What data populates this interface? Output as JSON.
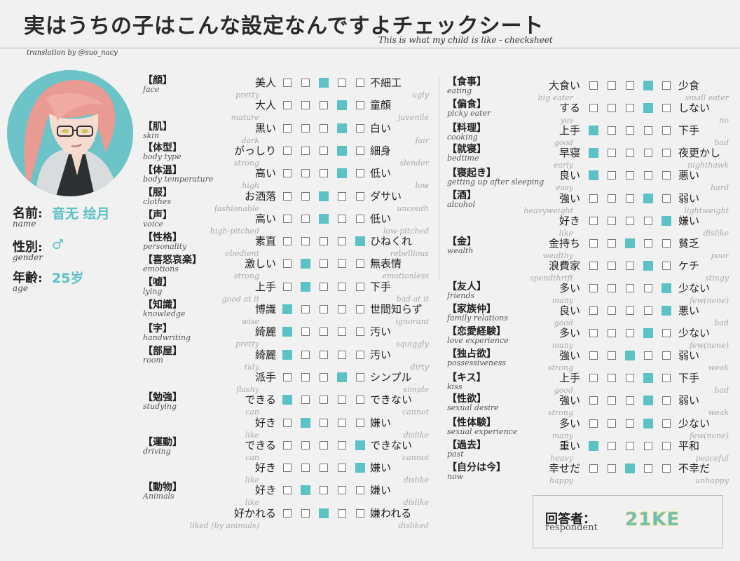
{
  "title": "実はうちの子はこんな設定なんですよチェックシート",
  "subtitle": "This is what my child is like - checksheet",
  "credit": "translation by @suo_nacy",
  "colors": {
    "accent": "#5cc2c6",
    "border": "#777777"
  },
  "profile": {
    "name_label": "名前:",
    "name_en": "name",
    "name_value": "音无 绘月",
    "gender_label": "性別:",
    "gender_en": "gender",
    "gender_value": "♂",
    "age_label": "年齢:",
    "age_en": "age",
    "age_value": "25岁"
  },
  "left_categories": [
    {
      "jp": "【顔】",
      "en": "face"
    },
    {
      "jp": "【肌】",
      "en": "skin"
    },
    {
      "jp": "【体型】",
      "en": "body type"
    },
    {
      "jp": "【体温】",
      "en": "body temperature"
    },
    {
      "jp": "【服】",
      "en": "clothes"
    },
    {
      "jp": "【声】",
      "en": "voice"
    },
    {
      "jp": "【性格】",
      "en": "personality"
    },
    {
      "jp": "【喜怒哀楽】",
      "en": "emotions"
    },
    {
      "jp": "【嘘】",
      "en": "lying"
    },
    {
      "jp": "【知識】",
      "en": "knowledge"
    },
    {
      "jp": "【字】",
      "en": "handwriting"
    },
    {
      "jp": "【部屋】",
      "en": "room"
    },
    {
      "jp": "【勉強】",
      "en": "studying"
    },
    {
      "jp": "【運動】",
      "en": "driving"
    },
    {
      "jp": "【動物】",
      "en": "Animals"
    }
  ],
  "left_rows": [
    {
      "l": "美人",
      "le": "pretty",
      "r": "不細工",
      "re": "ugly",
      "sel": 3
    },
    {
      "l": "大人",
      "le": "mature",
      "r": "童顔",
      "re": "juvenile",
      "sel": 4
    },
    {
      "l": "黒い",
      "le": "dark",
      "r": "白い",
      "re": "fair",
      "sel": 4
    },
    {
      "l": "がっしり",
      "le": "strong",
      "r": "細身",
      "re": "slender",
      "sel": 4
    },
    {
      "l": "高い",
      "le": "high",
      "r": "低い",
      "re": "low",
      "sel": 4
    },
    {
      "l": "お洒落",
      "le": "fashionable",
      "r": "ダサい",
      "re": "uncouth",
      "sel": 3
    },
    {
      "l": "高い",
      "le": "high-pitched",
      "r": "低い",
      "re": "low-pitched",
      "sel": 3
    },
    {
      "l": "素直",
      "le": "obedient",
      "r": "ひねくれ",
      "re": "rebellious",
      "sel": 5
    },
    {
      "l": "激しい",
      "le": "strong",
      "r": "無表情",
      "re": "emotionless",
      "sel": 2
    },
    {
      "l": "上手",
      "le": "good at it",
      "r": "下手",
      "re": "bad at it",
      "sel": 2
    },
    {
      "l": "博識",
      "le": "wise",
      "r": "世間知らず",
      "re": "ignorant",
      "sel": 1
    },
    {
      "l": "綺麗",
      "le": "pretty",
      "r": "汚い",
      "re": "squiggly",
      "sel": 1
    },
    {
      "l": "綺麗",
      "le": "tidy",
      "r": "汚い",
      "re": "dirty",
      "sel": 1
    },
    {
      "l": "派手",
      "le": "flashy",
      "r": "シンプル",
      "re": "simple",
      "sel": 4
    },
    {
      "l": "できる",
      "le": "can",
      "r": "できない",
      "re": "cannot",
      "sel": 1
    },
    {
      "l": "好き",
      "le": "like",
      "r": "嫌い",
      "re": "dislike",
      "sel": 2
    },
    {
      "l": "できる",
      "le": "can",
      "r": "できない",
      "re": "cannot",
      "sel": 5
    },
    {
      "l": "好き",
      "le": "like",
      "r": "嫌い",
      "re": "dislike",
      "sel": 5
    },
    {
      "l": "好き",
      "le": "like",
      "r": "嫌い",
      "re": "dislike",
      "sel": 2
    },
    {
      "l": "好かれる",
      "le": "liked (by animals)",
      "r": "嫌われる",
      "re": "disliked",
      "sel": 3
    }
  ],
  "right_categories": [
    {
      "jp": "【食事】",
      "en": "eating"
    },
    {
      "jp": "【偏食】",
      "en": "picky eater"
    },
    {
      "jp": "【料理】",
      "en": "cooking"
    },
    {
      "jp": "【就寝】",
      "en": "bedtime"
    },
    {
      "jp": "【寝起き】",
      "en": "getting up after sleeping"
    },
    {
      "jp": "【酒】",
      "en": "alcohol"
    },
    {
      "jp": "【金】",
      "en": "wealth"
    },
    {
      "jp": "【友人】",
      "en": "friends"
    },
    {
      "jp": "【家族仲】",
      "en": "family relations"
    },
    {
      "jp": "【恋愛経験】",
      "en": "love experience"
    },
    {
      "jp": "【独占欲】",
      "en": "possessiveness"
    },
    {
      "jp": "【キス】",
      "en": "kiss"
    },
    {
      "jp": "【性欲】",
      "en": "sexual desire"
    },
    {
      "jp": "【性体験】",
      "en": "sexual experience"
    },
    {
      "jp": "【過去】",
      "en": "past"
    },
    {
      "jp": "【自分は今】",
      "en": "now"
    }
  ],
  "right_rows": [
    {
      "l": "大食い",
      "le": "big eater",
      "r": "少食",
      "re": "small eater",
      "sel": 4
    },
    {
      "l": "する",
      "le": "yes",
      "r": "しない",
      "re": "no",
      "sel": 4
    },
    {
      "l": "上手",
      "le": "good",
      "r": "下手",
      "re": "bad",
      "sel": 1
    },
    {
      "l": "早寝",
      "le": "early",
      "r": "夜更かし",
      "re": "nighthawk",
      "sel": 1
    },
    {
      "l": "良い",
      "le": "easy",
      "r": "悪い",
      "re": "hard",
      "sel": 1
    },
    {
      "l": "強い",
      "le": "heavyweight",
      "r": "弱い",
      "re": "lightweight",
      "sel": 4
    },
    {
      "l": "好き",
      "le": "like",
      "r": "嫌い",
      "re": "dislike",
      "sel": 5
    },
    {
      "l": "金持ち",
      "le": "wealthy",
      "r": "貧乏",
      "re": "poor",
      "sel": 3
    },
    {
      "l": "浪費家",
      "le": "spendthrift",
      "r": "ケチ",
      "re": "stingy",
      "sel": 4
    },
    {
      "l": "多い",
      "le": "many",
      "r": "少ない",
      "re": "few(none)",
      "sel": 5
    },
    {
      "l": "良い",
      "le": "good",
      "r": "悪い",
      "re": "bad",
      "sel": 5
    },
    {
      "l": "多い",
      "le": "many",
      "r": "少ない",
      "re": "few(none)",
      "sel": 4
    },
    {
      "l": "強い",
      "le": "strong",
      "r": "弱い",
      "re": "weak",
      "sel": 3
    },
    {
      "l": "上手",
      "le": "good",
      "r": "下手",
      "re": "bad",
      "sel": 4
    },
    {
      "l": "強い",
      "le": "strong",
      "r": "弱い",
      "re": "weak",
      "sel": 4
    },
    {
      "l": "多い",
      "le": "many",
      "r": "少ない",
      "re": "few(none)",
      "sel": 4
    },
    {
      "l": "重い",
      "le": "heavy",
      "r": "平和",
      "re": "peaceful",
      "sel": 1
    },
    {
      "l": "幸せだ",
      "le": "happy",
      "r": "不幸だ",
      "re": "unhappy",
      "sel": 3
    }
  ],
  "respondent": {
    "label": "回答者：",
    "en": "respondent",
    "name": "21KE"
  }
}
